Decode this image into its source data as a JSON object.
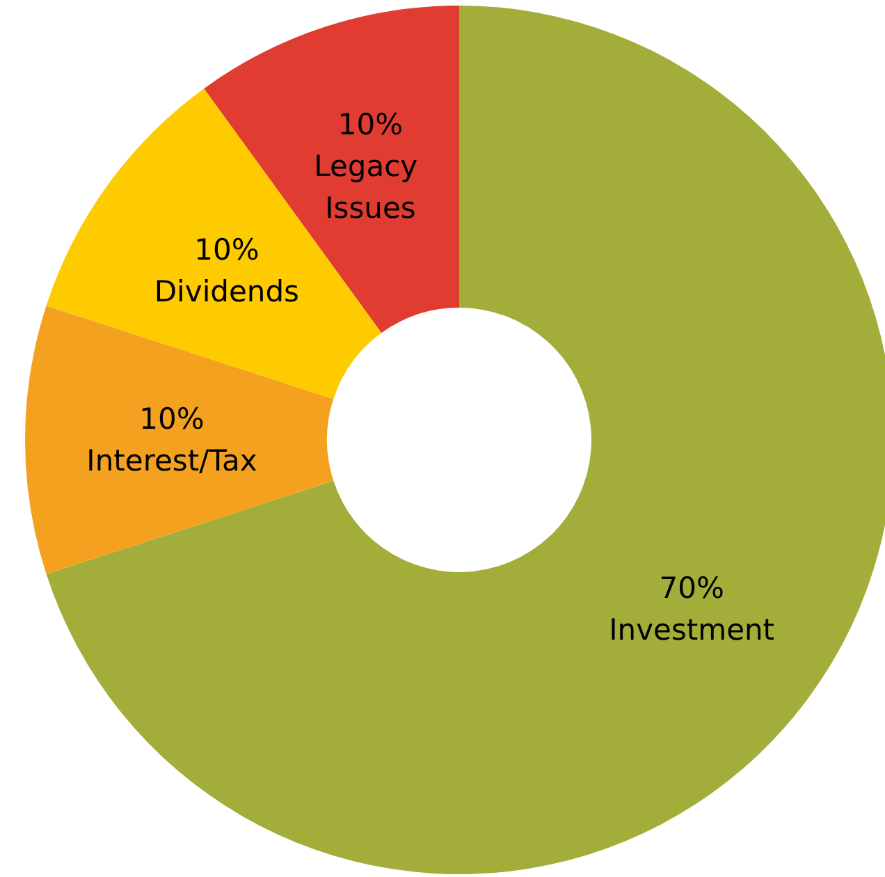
{
  "chart_data": {
    "type": "donut",
    "categories": [
      "Investment",
      "Interest/Tax",
      "Dividends",
      "Legacy Issues"
    ],
    "values": [
      70,
      10,
      10,
      10
    ],
    "value_labels": [
      "70%",
      "10%",
      "10%",
      "10%"
    ],
    "colors": [
      "#a3ad39",
      "#f4a11f",
      "#fecb00",
      "#e03c31"
    ],
    "legend": false
  }
}
